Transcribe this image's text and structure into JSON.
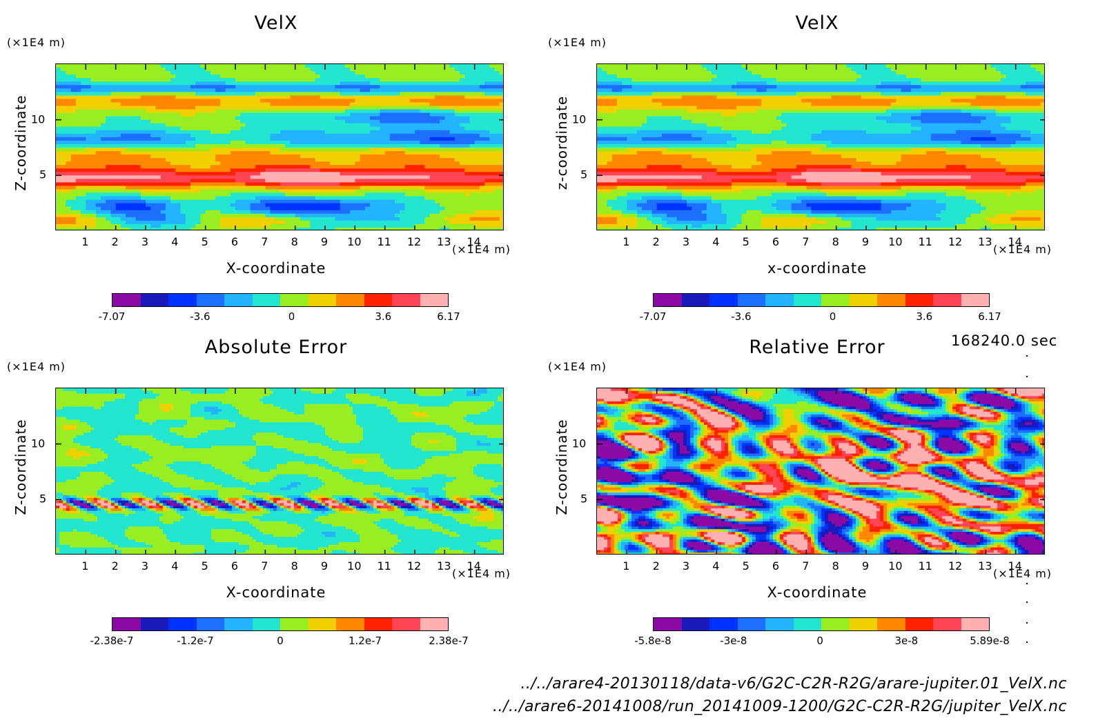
{
  "timestamp": "168240.0 sec",
  "files": [
    "../../arare4-20130118/data-v6/G2C-C2R-R2G/arare-jupiter.01_VelX.nc",
    "../../arare6-20141008/run_20141009-1200/G2C-C2R-R2G/jupiter_VelX.nc"
  ],
  "colormap": [
    "#8b0aa5",
    "#1a1ab8",
    "#0033ff",
    "#1d6fff",
    "#22b4ff",
    "#22e6d0",
    "#99ee22",
    "#f0d000",
    "#ff8800",
    "#ff2200",
    "#ff4455",
    "#ffb0b0"
  ],
  "chart_data": [
    {
      "type": "heatmap",
      "title": "VelX",
      "xlabel": "X-coordinate",
      "ylabel": "Z-coordinate",
      "x_unit": "(×1E4 m)",
      "y_unit": "(×1E4 m)",
      "xlim": [
        0,
        15
      ],
      "ylim": [
        0,
        15
      ],
      "x_ticks": [
        "1",
        "2",
        "3",
        "4",
        "5",
        "6",
        "7",
        "8",
        "9",
        "10",
        "11",
        "12",
        "13",
        "14"
      ],
      "y_ticks": [
        "5",
        "10"
      ],
      "colorbar": {
        "range": [
          -7.07,
          6.17
        ],
        "labels": [
          "-7.07",
          "-3.6",
          "0",
          "3.6",
          "6.17"
        ]
      },
      "pattern": "bands"
    },
    {
      "type": "heatmap",
      "title": "VelX",
      "xlabel": "x-coordinate",
      "ylabel": "z-coordinate",
      "x_unit": "(×1E4 m)",
      "y_unit": "(×1E4 m)",
      "xlim": [
        0,
        15
      ],
      "ylim": [
        0,
        15
      ],
      "x_ticks": [
        "1",
        "2",
        "3",
        "4",
        "5",
        "6",
        "7",
        "8",
        "9",
        "10",
        "11",
        "12",
        "13",
        "14"
      ],
      "y_ticks": [
        "5",
        "10"
      ],
      "colorbar": {
        "range": [
          -7.07,
          6.17
        ],
        "labels": [
          "-7.07",
          "-3.6",
          "0",
          "3.6",
          "6.17"
        ]
      },
      "pattern": "bands"
    },
    {
      "type": "heatmap",
      "title": "Absolute Error",
      "xlabel": "X-coordinate",
      "ylabel": "Z-coordinate",
      "x_unit": "(×1E4 m)",
      "y_unit": "(×1E4 m)",
      "xlim": [
        0,
        15
      ],
      "ylim": [
        0,
        15
      ],
      "x_ticks": [
        "1",
        "2",
        "3",
        "4",
        "5",
        "6",
        "7",
        "8",
        "9",
        "10",
        "11",
        "12",
        "13",
        "14"
      ],
      "y_ticks": [
        "5",
        "10"
      ],
      "colorbar": {
        "range": [
          -2.38e-07,
          2.38e-07
        ],
        "labels": [
          "-2.38e-7",
          "-1.2e-7",
          "0",
          "1.2e-7",
          "2.38e-7"
        ]
      },
      "pattern": "noise-low"
    },
    {
      "type": "heatmap",
      "title": "Relative Error",
      "xlabel": "X-coordinate",
      "ylabel": "Z-coordinate",
      "x_unit": "(×1E4 m)",
      "y_unit": "(×1E4 m)",
      "xlim": [
        0,
        15
      ],
      "ylim": [
        0,
        15
      ],
      "x_ticks": [
        "1",
        "2",
        "3",
        "4",
        "5",
        "6",
        "7",
        "8",
        "9",
        "10",
        "11",
        "12",
        "13",
        "14"
      ],
      "y_ticks": [
        "5",
        "10"
      ],
      "colorbar": {
        "range": [
          -5.8e-08,
          5.89e-08
        ],
        "labels": [
          "-5.8e-8",
          "-3e-8",
          "0",
          "3e-8",
          "5.89e-8"
        ]
      },
      "pattern": "noise-high"
    }
  ]
}
